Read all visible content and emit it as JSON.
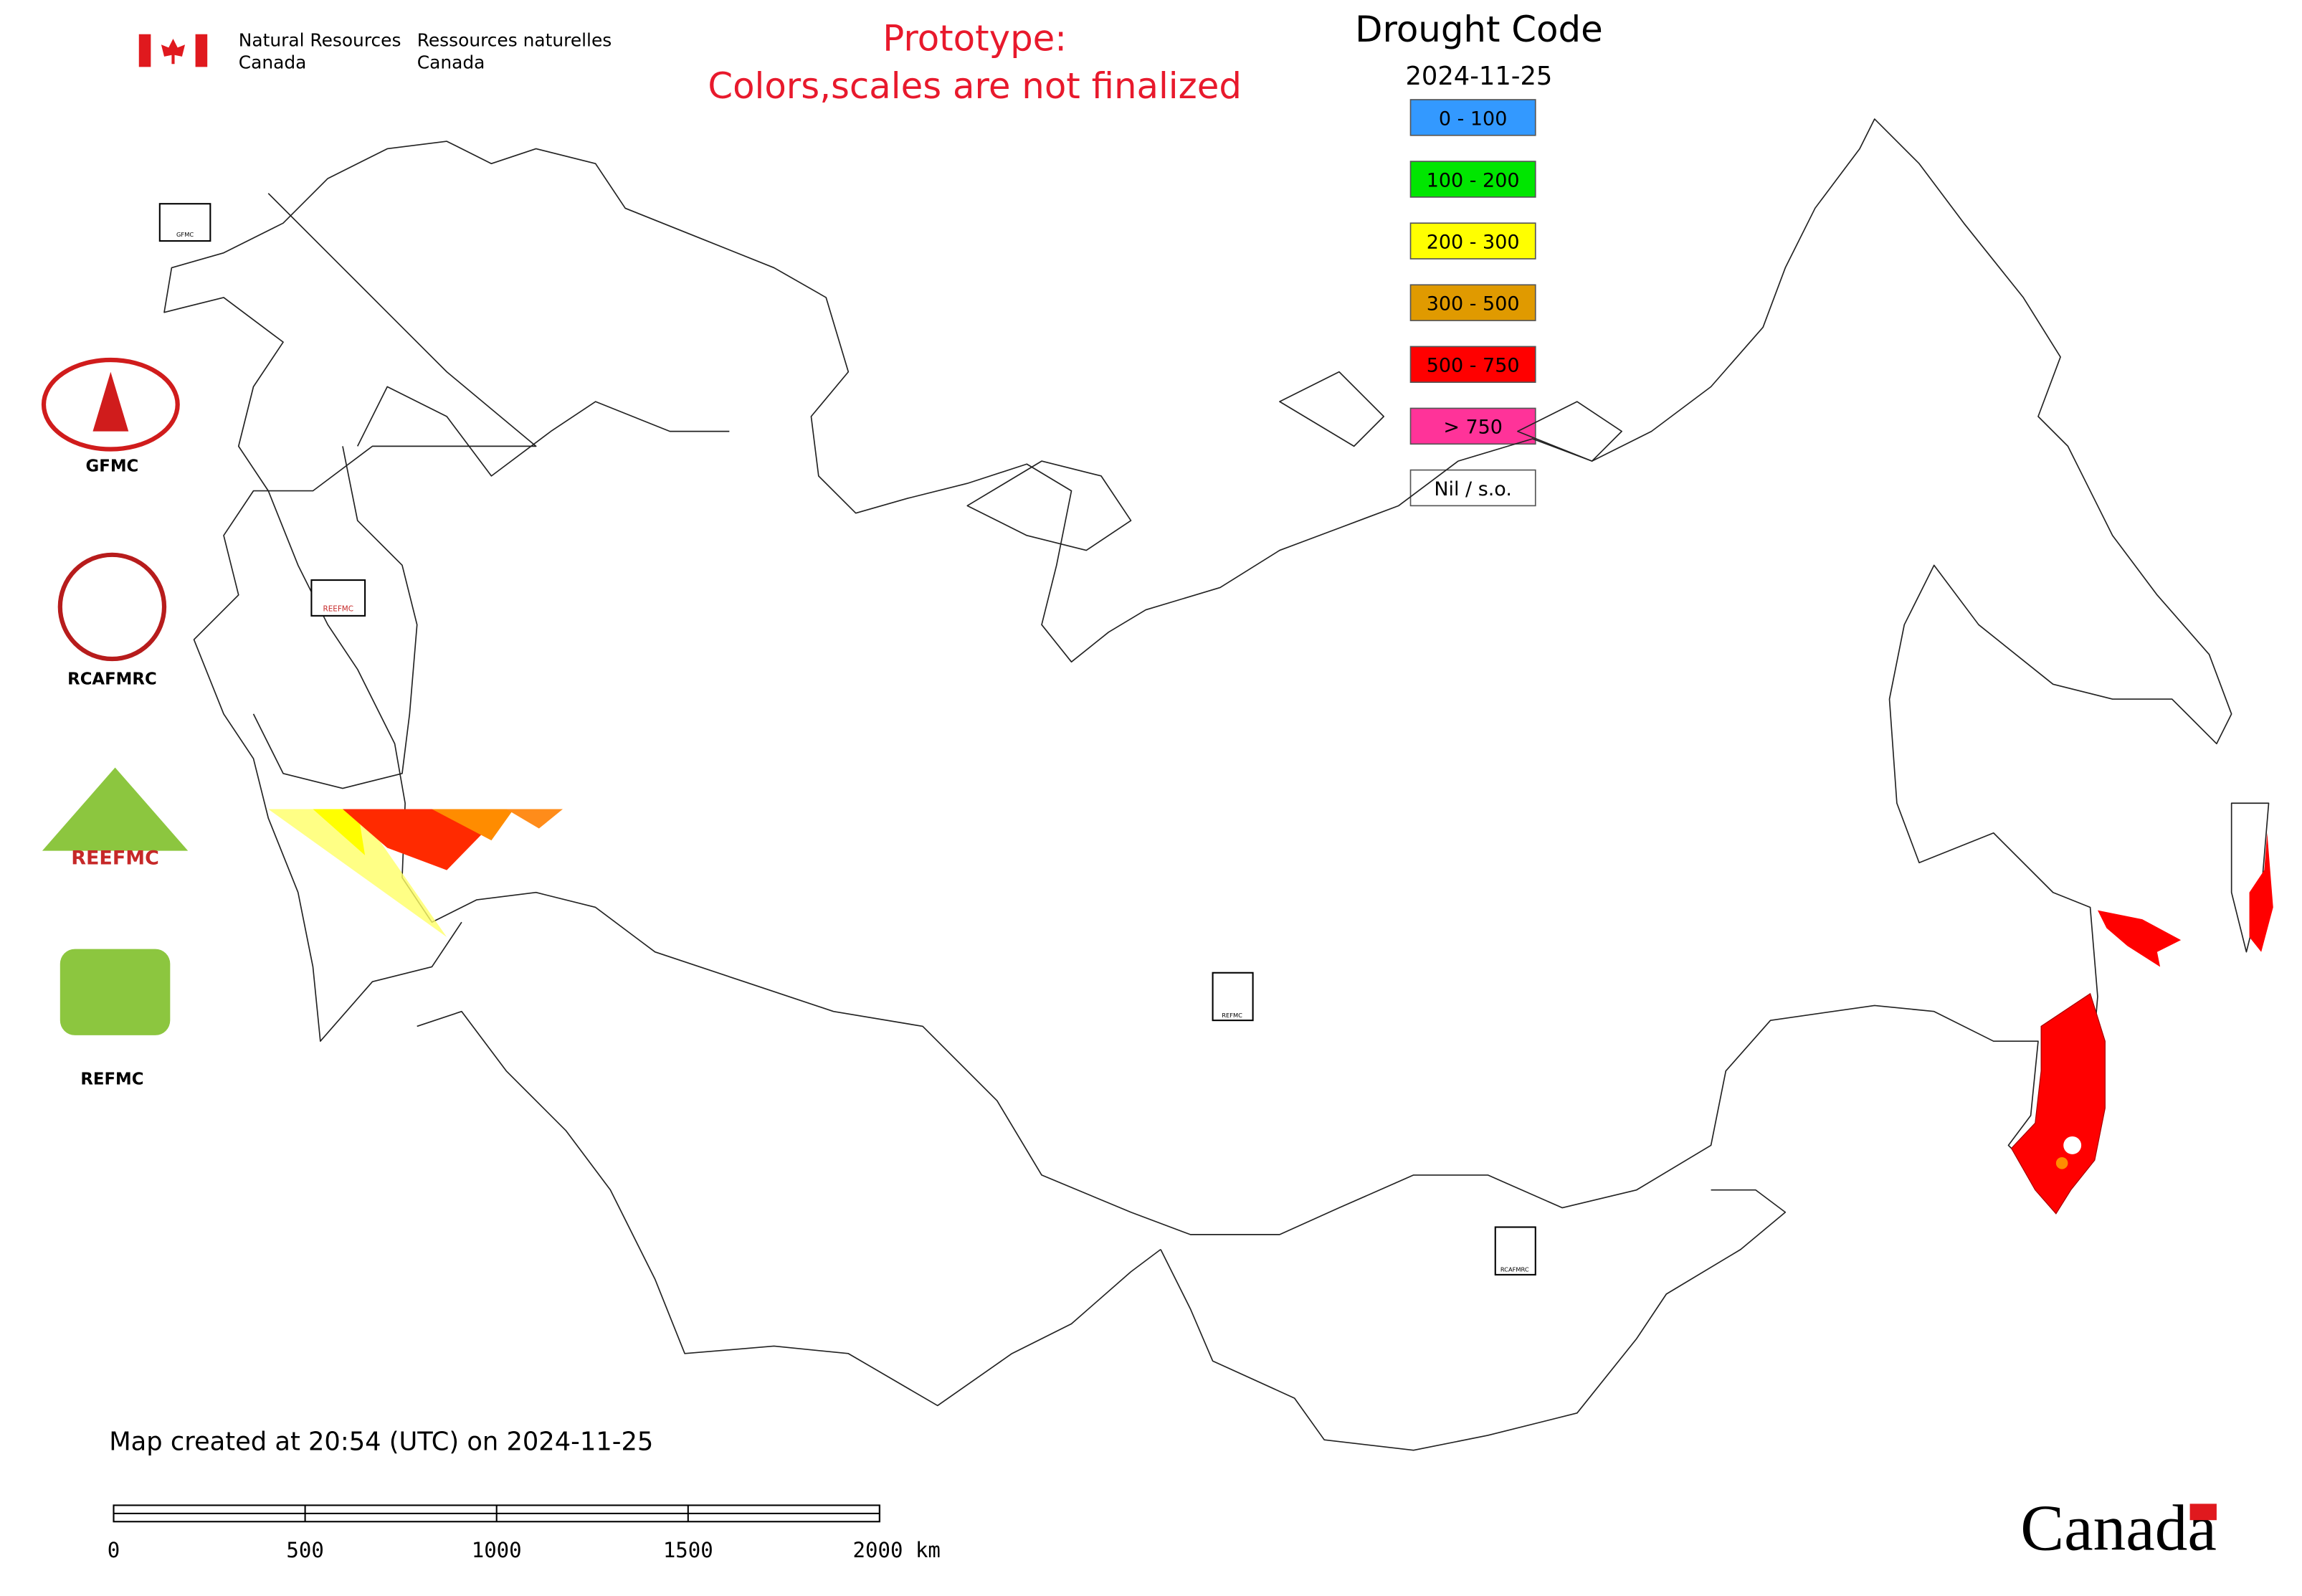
{
  "header": {
    "department_en": [
      "Natural Resources",
      "Canada"
    ],
    "department_fr": [
      "Ressources naturelles",
      "Canada"
    ]
  },
  "prototype_note": [
    "Prototype:",
    "Colors,scales are not finalized"
  ],
  "legend": {
    "title": "Drought Code",
    "date": "2024-11-25",
    "items": [
      {
        "label": "0 - 100",
        "color": "#3399ff"
      },
      {
        "label": "100 - 200",
        "color": "#00e600"
      },
      {
        "label": "200 - 300",
        "color": "#ffff00"
      },
      {
        "label": "300 - 500",
        "color": "#e09a00"
      },
      {
        "label": "500 - 750",
        "color": "#ff0000"
      },
      {
        "label": "> 750",
        "color": "#ff3399"
      },
      {
        "label": "Nil / s.o.",
        "color": "#ffffff"
      }
    ]
  },
  "logos": [
    {
      "label": "GFMC"
    },
    {
      "label": "RCAFMRC"
    },
    {
      "label": "REEFMC"
    },
    {
      "label": "REFMC"
    }
  ],
  "map_markers": [
    "GFMC",
    "REEFMC",
    "REFMC",
    "RCAFMRC"
  ],
  "footer": {
    "created": "Map created at 20:54 (UTC) on 2024-11-25",
    "scale_bar": [
      "0",
      "500",
      "1000",
      "1500",
      "2000 km"
    ],
    "wordmark": "Canada"
  }
}
